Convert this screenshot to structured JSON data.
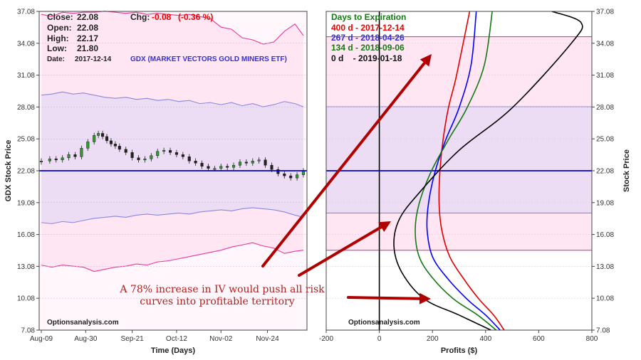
{
  "colors": {
    "outer_band": "#ffe6f2",
    "inner_band": "#ecdcf4",
    "outer_line": "#e8389c",
    "inner_line": "#8888e0",
    "price_line": "#0000cc",
    "red": "#e00000",
    "blue": "#0000ff",
    "green": "#147814",
    "black": "#000000",
    "arrow": "#b00000",
    "header_red": "#ee0000",
    "header_blue": "#3333cc",
    "header_green": "#147814"
  },
  "left_panel": {
    "quote": {
      "close_label": "Close:",
      "close_value": "22.08",
      "chg_label": "Chg:",
      "chg_value": "-0.08",
      "chg_pct": "(-0.36 %)",
      "open_label": "Open:",
      "open_value": "22.08",
      "high_label": "High:",
      "high_value": "22.17",
      "low_label": "Low:",
      "low_value": "21.80",
      "date_label": "Date:",
      "date_value": "2017-12-14",
      "symbol": "GDX (MARKET VECTORS GOLD MINERS ETF)"
    },
    "watermark": "Optionsanalysis.com"
  },
  "right_panel": {
    "legend_title": "Days to Expiration",
    "watermark": "Optionsanalysis.com"
  },
  "annotation": {
    "line1": "A 78% increase in IV would push all risk",
    "line2": "curves into profitable territory"
  },
  "chart_data": [
    {
      "type": "candlestick",
      "xlabel": "Time (Days)",
      "ylabel": "GDX Stock Price",
      "x_ticks": [
        "Aug-09",
        "Aug-30",
        "Sep-21",
        "Oct-12",
        "Nov-02",
        "Nov-24"
      ],
      "y_ticks": [
        "7.08",
        "10.08",
        "13.08",
        "16.08",
        "19.08",
        "22.08",
        "25.08",
        "28.08",
        "31.08",
        "34.08",
        "37.08"
      ],
      "ylim": [
        7.08,
        37.08
      ],
      "current_price": 22.08,
      "price_series": {
        "x": [
          0,
          4,
          7,
          10,
          13,
          16,
          19,
          22,
          25,
          27,
          29,
          31,
          33,
          35,
          37,
          40,
          43,
          46,
          49,
          52,
          55,
          58,
          61,
          64,
          67,
          70,
          73,
          76,
          79,
          82,
          85,
          88,
          91,
          94,
          97,
          100,
          103,
          106,
          109,
          112,
          115,
          118,
          121,
          124
        ],
        "close": [
          23.0,
          23.2,
          23.1,
          23.3,
          23.6,
          23.4,
          24.2,
          24.8,
          25.4,
          25.6,
          25.3,
          24.9,
          24.6,
          24.4,
          24.1,
          23.8,
          23.3,
          23.1,
          23.2,
          23.5,
          23.9,
          24.0,
          23.8,
          23.6,
          23.4,
          23.0,
          22.8,
          22.5,
          22.3,
          22.3,
          22.5,
          22.4,
          22.6,
          22.9,
          22.8,
          23.0,
          23.1,
          22.6,
          22.2,
          21.8,
          21.6,
          21.4,
          21.7,
          22.08
        ]
      },
      "bands": {
        "x": [
          0,
          5,
          10,
          15,
          20,
          25,
          30,
          35,
          40,
          45,
          50,
          55,
          60,
          65,
          70,
          75,
          80,
          85,
          90,
          95,
          100,
          105,
          110,
          115,
          120,
          124
        ],
        "outer_upper": [
          36.8,
          36.6,
          37.0,
          36.9,
          37.0,
          37.0,
          37.1,
          37.0,
          36.9,
          37.0,
          36.8,
          36.9,
          36.8,
          36.7,
          36.8,
          36.6,
          36.4,
          35.6,
          35.4,
          34.6,
          34.4,
          34.0,
          34.2,
          35.2,
          35.9,
          34.8
        ],
        "inner_upper": [
          29.2,
          29.3,
          29.5,
          29.3,
          29.4,
          29.2,
          29.0,
          28.9,
          29.0,
          28.8,
          28.9,
          28.7,
          28.8,
          28.6,
          28.7,
          28.4,
          28.5,
          28.3,
          28.5,
          28.2,
          28.4,
          28.1,
          28.3,
          28.6,
          28.4,
          28.1
        ],
        "inner_lower": [
          17.2,
          17.1,
          17.3,
          17.2,
          17.4,
          17.6,
          17.7,
          17.8,
          17.7,
          17.9,
          18.0,
          17.9,
          18.0,
          18.1,
          18.0,
          18.2,
          18.3,
          18.4,
          18.3,
          18.5,
          18.6,
          18.5,
          18.4,
          18.2,
          17.9,
          17.7
        ],
        "outer_lower": [
          13.2,
          13.0,
          13.2,
          13.1,
          13.0,
          12.6,
          12.8,
          13.0,
          13.1,
          13.3,
          13.2,
          13.5,
          13.6,
          13.8,
          14.0,
          14.2,
          14.4,
          14.6,
          14.9,
          15.1,
          15.3,
          15.0,
          14.8,
          14.3,
          14.5,
          14.6
        ]
      }
    },
    {
      "type": "line",
      "xlabel": "Profits ($)",
      "ylabel": "Stock Price",
      "x_ticks": [
        "-200",
        "0",
        "200",
        "400",
        "600",
        "800"
      ],
      "y_ticks": [
        "7.08",
        "10.08",
        "13.08",
        "16.08",
        "19.08",
        "22.08",
        "25.08",
        "28.08",
        "31.08",
        "34.08",
        "37.08"
      ],
      "xlim": [
        -200,
        800
      ],
      "ylim": [
        7.08,
        37.08
      ],
      "current_price": 22.08,
      "bands": {
        "outer": [
          14.6,
          34.7
        ],
        "inner": [
          18.1,
          28.1
        ]
      },
      "series": [
        {
          "name": "400 d - 2017-12-14",
          "color": "red",
          "x": [
            470,
            430,
            375,
            315,
            265,
            235,
            225,
            228,
            240,
            260,
            290,
            340
          ],
          "y": [
            7.08,
            8.5,
            10.0,
            12.0,
            14.0,
            16.5,
            19.0,
            22.0,
            25.0,
            28.0,
            31.0,
            37.08
          ]
        },
        {
          "name": "267 d - 2018-04-26",
          "color": "blue",
          "x": [
            455,
            400,
            330,
            255,
            200,
            180,
            185,
            210,
            250,
            300,
            345,
            365
          ],
          "y": [
            7.08,
            8.5,
            10.0,
            12.0,
            14.0,
            16.5,
            19.0,
            22.0,
            25.0,
            28.0,
            32.0,
            37.08
          ]
        },
        {
          "name": "134 d - 2018-09-06",
          "color": "green",
          "x": [
            440,
            370,
            280,
            200,
            150,
            135,
            150,
            195,
            260,
            330,
            395,
            425
          ],
          "y": [
            7.08,
            8.5,
            10.0,
            12.0,
            14.0,
            16.5,
            19.0,
            22.0,
            25.0,
            28.0,
            32.0,
            37.08
          ]
        },
        {
          "name": "0 d    - 2019-01-18",
          "color": "black",
          "x": [
            420,
            300,
            170,
            85,
            55,
            75,
            150,
            300,
            500,
            720,
            760,
            650
          ],
          "y": [
            7.08,
            8.5,
            10.0,
            12.5,
            15.0,
            17.5,
            20.0,
            24.0,
            28.0,
            34.0,
            36.0,
            37.08
          ]
        }
      ]
    }
  ]
}
